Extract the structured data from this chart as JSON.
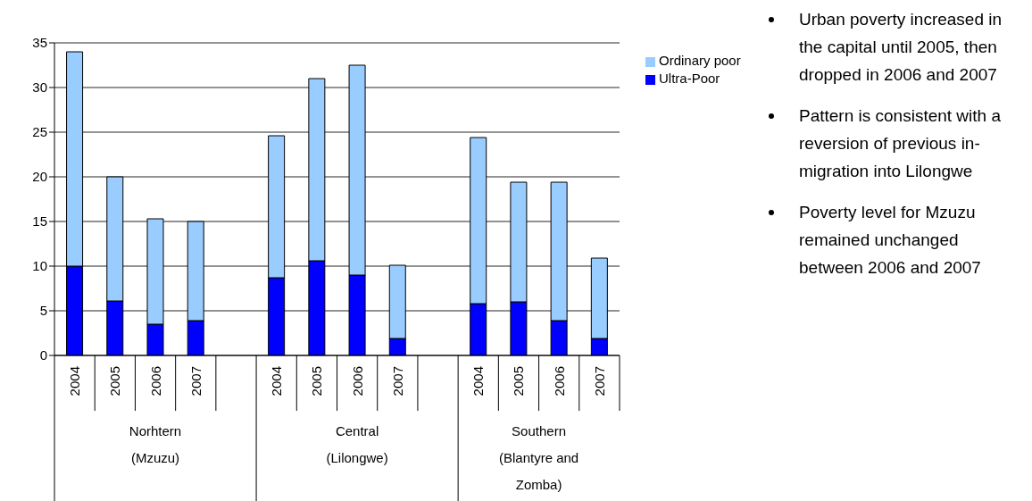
{
  "chart_data": {
    "type": "bar",
    "stacked": true,
    "categories": [
      "2004",
      "2005",
      "2006",
      "2007",
      null,
      "2004",
      "2005",
      "2006",
      "2007",
      null,
      "2004",
      "2005",
      "2006",
      "2007"
    ],
    "series": [
      {
        "name": "Ultra-Poor",
        "color": "#0000ff",
        "values": [
          10,
          6.1,
          3.5,
          3.9,
          null,
          8.7,
          10.6,
          9.0,
          1.9,
          null,
          5.8,
          6.0,
          3.9,
          1.9
        ]
      },
      {
        "name": "Ordinary poor",
        "color": "#99ccff",
        "values": [
          24,
          13.9,
          11.8,
          11.1,
          null,
          15.9,
          20.4,
          23.5,
          8.2,
          null,
          18.6,
          13.4,
          15.5,
          9.0
        ]
      }
    ],
    "ylim": [
      0,
      35
    ],
    "yticks": [
      0,
      5,
      10,
      15,
      20,
      25,
      30,
      35
    ],
    "grid": "y",
    "legend": "right",
    "annotations": [
      "Norhtern\n(Mzuzu)",
      "Central\n(Lilongwe)",
      "Southern\n(Blantyre and\nZomba)",
      "Urban poverty increased in the capital until 2005, then dropped in 2006 and 2007",
      "Pattern is consistent with a reversion of previous in-migration into Lilongwe",
      "Poverty level for Mzuzu remained unchanged between 2006 and 2007"
    ]
  }
}
